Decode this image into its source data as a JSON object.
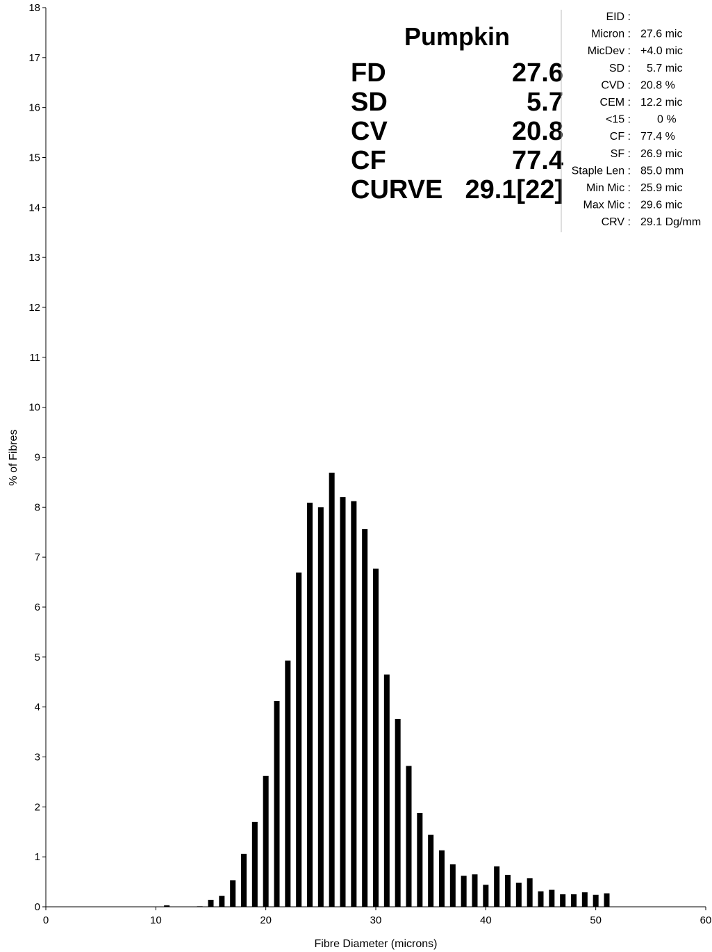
{
  "chart_data": {
    "type": "bar",
    "xlabel": "Fibre Diameter (microns)",
    "ylabel": "% of Fibres",
    "xlim": [
      0,
      60
    ],
    "ylim": [
      0,
      18
    ],
    "xticks": [
      "0",
      "10",
      "20",
      "30",
      "40",
      "50",
      "60"
    ],
    "yticks": [
      "0",
      "1",
      "2",
      "3",
      "4",
      "5",
      "6",
      "7",
      "8",
      "9",
      "10",
      "11",
      "12",
      "13",
      "14",
      "15",
      "16",
      "17",
      "18"
    ],
    "grid": false,
    "bar_color": "#000000",
    "x": [
      11,
      14,
      15,
      16,
      17,
      18,
      19,
      20,
      21,
      22,
      23,
      24,
      25,
      26,
      27,
      28,
      29,
      30,
      31,
      32,
      33,
      34,
      35,
      36,
      37,
      38,
      39,
      40,
      41,
      42,
      43,
      44,
      45,
      46,
      47,
      48,
      49,
      50,
      51
    ],
    "values": [
      0.03,
      0.01,
      0.14,
      0.22,
      0.53,
      1.06,
      1.7,
      2.62,
      4.12,
      4.93,
      6.69,
      8.09,
      8.0,
      8.69,
      8.2,
      8.12,
      7.56,
      6.77,
      4.65,
      3.76,
      2.82,
      1.88,
      1.44,
      1.13,
      0.85,
      0.62,
      0.65,
      0.44,
      0.81,
      0.64,
      0.48,
      0.57,
      0.31,
      0.34,
      0.25,
      0.25,
      0.29,
      0.24,
      0.27
    ]
  },
  "summary": {
    "sample_name": "Pumpkin",
    "rows": [
      {
        "label": "FD",
        "value": "27.6"
      },
      {
        "label": "SD",
        "value": "5.7"
      },
      {
        "label": "CV",
        "value": "20.8"
      },
      {
        "label": "CF",
        "value": "77.4"
      },
      {
        "label": "CURVE",
        "value": "29.1[22]"
      }
    ]
  },
  "stats": [
    {
      "label": "EID :",
      "value": ""
    },
    {
      "label": "Micron :",
      "value": "27.6 mic"
    },
    {
      "label": "MicDev :",
      "value": "+4.0 mic"
    },
    {
      "label": "SD :",
      "value": "5.7 mic"
    },
    {
      "label": "CVD :",
      "value": "20.8 %"
    },
    {
      "label": "CEM :",
      "value": "12.2 mic"
    },
    {
      "label": "<15 :",
      "value": "0 %"
    },
    {
      "label": "CF :",
      "value": "77.4 %"
    },
    {
      "label": "SF :",
      "value": "26.9 mic"
    },
    {
      "label": "Staple Len :",
      "value": "85.0 mm"
    },
    {
      "label": "Min Mic :",
      "value": "25.9 mic"
    },
    {
      "label": "Max Mic :",
      "value": "29.6 mic"
    },
    {
      "label": "CRV :",
      "value": "29.1 Dg/mm"
    }
  ]
}
